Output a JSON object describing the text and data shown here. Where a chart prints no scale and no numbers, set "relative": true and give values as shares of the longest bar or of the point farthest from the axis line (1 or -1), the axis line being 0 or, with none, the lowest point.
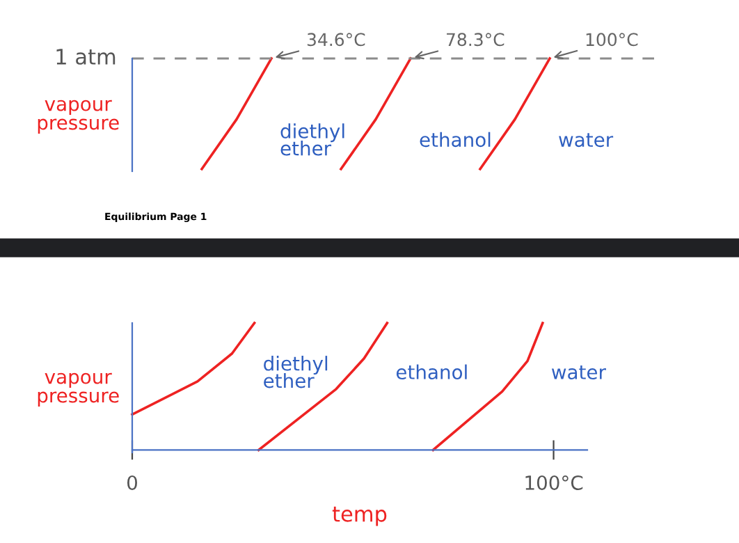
{
  "chart_data": [
    {
      "type": "line",
      "relative": true,
      "ylabel": "vapour pressure",
      "categories": [
        null,
        null,
        null,
        null,
        null,
        null,
        null,
        null,
        null,
        null,
        null,
        null,
        null,
        null,
        null,
        null
      ],
      "tick_labels": false,
      "grid": false,
      "legend": false,
      "marker": "none",
      "line_style": "solid",
      "series": [
        {
          "name": "diethyl ether",
          "color": "#ee2222",
          "values": [
            null,
            null,
            0,
            0.45,
            1,
            null,
            null,
            null,
            null,
            null,
            null,
            null,
            null,
            null,
            null,
            null
          ]
        },
        {
          "name": "ethanol",
          "color": "#ee2222",
          "values": [
            null,
            null,
            null,
            null,
            null,
            null,
            0,
            0.45,
            1,
            null,
            null,
            null,
            null,
            null,
            null,
            null
          ]
        },
        {
          "name": "water",
          "color": "#ee2222",
          "values": [
            null,
            null,
            null,
            null,
            null,
            null,
            null,
            null,
            null,
            null,
            0,
            0.45,
            1,
            null,
            null,
            null
          ]
        }
      ],
      "ref_lines": [
        {
          "axis": "y",
          "value": 1,
          "label": "1 atm",
          "color": "#8c8c8c",
          "line_style": "dashed"
        }
      ],
      "annotations": [
        "34.6°C",
        "78.3°C",
        "100°C",
        "Equilibrium Page 1"
      ]
    },
    {
      "type": "line",
      "relative": true,
      "ylabel": "vapour pressure",
      "xlabel": "temp",
      "xlim": [
        0,
        108
      ],
      "xticks": [
        0,
        {
          "value": 100,
          "label": "100°C"
        }
      ],
      "tick_labels": "x",
      "grid": false,
      "legend": false,
      "marker": "none",
      "line_style": "solid",
      "series": [
        {
          "name": "diethyl ether",
          "color": "#ee2222",
          "x": [
            0,
            15.5,
            23.7,
            29
          ],
          "values": [
            0.28,
            0.54,
            0.76,
            1
          ]
        },
        {
          "name": "ethanol",
          "color": "#ee2222",
          "x": [
            30,
            48.4,
            55,
            60.5
          ],
          "values": [
            0,
            0.48,
            0.72,
            1
          ]
        },
        {
          "name": "water",
          "color": "#ee2222",
          "x": [
            71.4,
            87.8,
            93.8,
            97.4
          ],
          "values": [
            0,
            0.46,
            0.7,
            1
          ]
        }
      ]
    }
  ]
}
